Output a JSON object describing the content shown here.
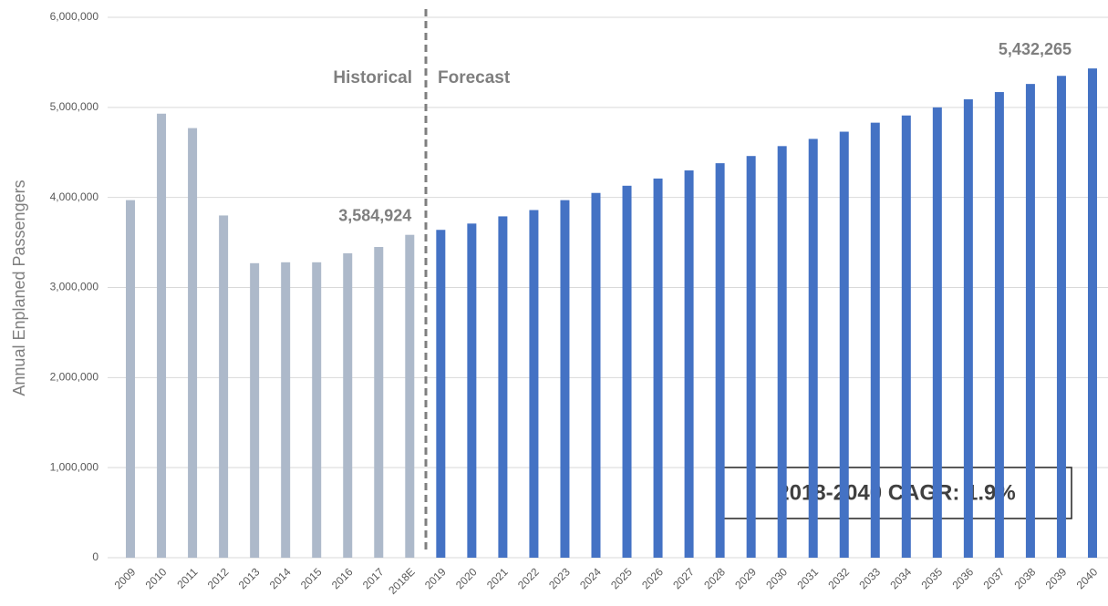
{
  "chart_data": {
    "type": "bar",
    "y_axis_label": "Annual Enplaned Passengers",
    "annotation": "2018-2040 CAGR: 1.9%",
    "categories": [
      "2009",
      "2010",
      "2011",
      "2012",
      "2013",
      "2014",
      "2015",
      "2016",
      "2017",
      "2018E",
      "2019",
      "2020",
      "2021",
      "2022",
      "2023",
      "2024",
      "2025",
      "2026",
      "2027",
      "2028",
      "2029",
      "2030",
      "2031",
      "2032",
      "2033",
      "2034",
      "2035",
      "2036",
      "2037",
      "2038",
      "2039",
      "2040"
    ],
    "series": [
      {
        "name": "Historical",
        "color": "#adb9ca",
        "values": [
          3970000,
          4930000,
          4770000,
          3800000,
          3270000,
          3280000,
          3280000,
          3380000,
          3450000,
          3584924,
          null,
          null,
          null,
          null,
          null,
          null,
          null,
          null,
          null,
          null,
          null,
          null,
          null,
          null,
          null,
          null,
          null,
          null,
          null,
          null,
          null,
          null
        ],
        "value_labels": [
          null,
          null,
          null,
          null,
          null,
          null,
          null,
          null,
          null,
          "3,584,924",
          null,
          null,
          null,
          null,
          null,
          null,
          null,
          null,
          null,
          null,
          null,
          null,
          null,
          null,
          null,
          null,
          null,
          null,
          null,
          null,
          null,
          null
        ]
      },
      {
        "name": "Forecast",
        "color": "#4472c4",
        "values": [
          null,
          null,
          null,
          null,
          null,
          null,
          null,
          null,
          null,
          null,
          3640000,
          3710000,
          3790000,
          3860000,
          3970000,
          4050000,
          4130000,
          4210000,
          4300000,
          4380000,
          4460000,
          4570000,
          4650000,
          4730000,
          4830000,
          4910000,
          5000000,
          5090000,
          5170000,
          5260000,
          5350000,
          5432265
        ],
        "value_labels": [
          null,
          null,
          null,
          null,
          null,
          null,
          null,
          null,
          null,
          null,
          null,
          null,
          null,
          null,
          null,
          null,
          null,
          null,
          null,
          null,
          null,
          null,
          null,
          null,
          null,
          null,
          null,
          null,
          null,
          null,
          null,
          "5,432,265"
        ]
      }
    ],
    "ylim": [
      0,
      6000000
    ],
    "yticks": [
      0,
      {
        "value": 1000000,
        "label": "1,000,000"
      },
      {
        "value": 2000000,
        "label": "2,000,000"
      },
      {
        "value": 3000000,
        "label": "3,000,000"
      },
      {
        "value": 4000000,
        "label": "4,000,000"
      },
      {
        "value": 5000000,
        "label": "5,000,000"
      },
      {
        "value": 6000000,
        "label": "6,000,000"
      }
    ],
    "grid": true
  }
}
